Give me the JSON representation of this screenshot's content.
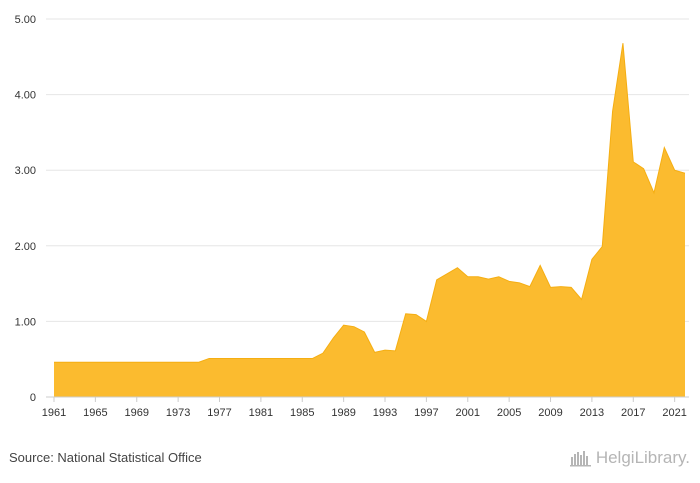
{
  "chart_data": {
    "type": "area",
    "title": "",
    "xlabel": "",
    "ylabel": "",
    "xlim": [
      1961,
      2022
    ],
    "ylim": [
      0,
      5
    ],
    "y_ticks": [
      "0",
      "1.00",
      "2.00",
      "3.00",
      "4.00",
      "5.00"
    ],
    "y_tick_values": [
      0,
      1,
      2,
      3,
      4,
      5
    ],
    "x_ticks": [
      "1961",
      "1965",
      "1969",
      "1973",
      "1977",
      "1981",
      "1985",
      "1989",
      "1993",
      "1997",
      "2001",
      "2005",
      "2009",
      "2013",
      "2017",
      "2021"
    ],
    "x_tick_values": [
      1961,
      1965,
      1969,
      1973,
      1977,
      1981,
      1985,
      1989,
      1993,
      1997,
      2001,
      2005,
      2009,
      2013,
      2017,
      2021
    ],
    "grid": true,
    "color": "#FBBB2F",
    "x": [
      1961,
      1962,
      1963,
      1964,
      1965,
      1966,
      1967,
      1968,
      1969,
      1970,
      1971,
      1972,
      1973,
      1974,
      1975,
      1976,
      1977,
      1978,
      1979,
      1980,
      1981,
      1982,
      1983,
      1984,
      1985,
      1986,
      1987,
      1988,
      1989,
      1990,
      1991,
      1992,
      1993,
      1994,
      1995,
      1996,
      1997,
      1998,
      1999,
      2000,
      2001,
      2002,
      2003,
      2004,
      2005,
      2006,
      2007,
      2008,
      2009,
      2010,
      2011,
      2012,
      2013,
      2014,
      2015,
      2016,
      2017,
      2018,
      2019,
      2020,
      2021,
      2022
    ],
    "values": [
      0.46,
      0.46,
      0.46,
      0.46,
      0.46,
      0.46,
      0.46,
      0.46,
      0.46,
      0.46,
      0.46,
      0.46,
      0.46,
      0.46,
      0.46,
      0.51,
      0.51,
      0.51,
      0.51,
      0.51,
      0.51,
      0.51,
      0.51,
      0.51,
      0.51,
      0.51,
      0.58,
      0.78,
      0.95,
      0.93,
      0.86,
      0.59,
      0.62,
      0.61,
      1.1,
      1.09,
      1.0,
      1.55,
      1.63,
      1.71,
      1.59,
      1.59,
      1.56,
      1.59,
      1.53,
      1.51,
      1.46,
      1.74,
      1.45,
      1.46,
      1.45,
      1.29,
      1.82,
      1.99,
      3.78,
      4.68,
      3.11,
      3.02,
      2.7,
      3.3,
      3.0,
      2.96
    ]
  },
  "footer": {
    "source": "Source: National Statistical Office",
    "logo_text": "HelgiLibrary.",
    "logo_icon": "helgi-library-logo-icon"
  }
}
